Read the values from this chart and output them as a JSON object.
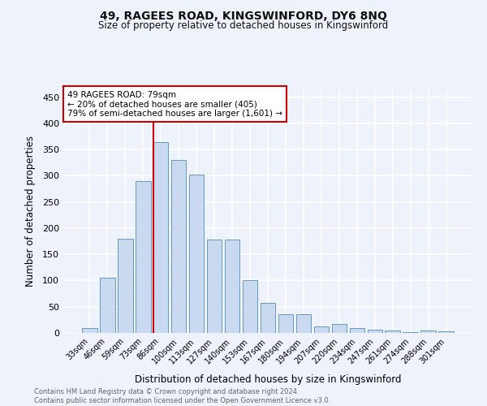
{
  "title1": "49, RAGEES ROAD, KINGSWINFORD, DY6 8NQ",
  "title2": "Size of property relative to detached houses in Kingswinford",
  "xlabel": "Distribution of detached houses by size in Kingswinford",
  "ylabel": "Number of detached properties",
  "categories": [
    "33sqm",
    "46sqm",
    "59sqm",
    "73sqm",
    "86sqm",
    "100sqm",
    "113sqm",
    "127sqm",
    "140sqm",
    "153sqm",
    "167sqm",
    "180sqm",
    "194sqm",
    "207sqm",
    "220sqm",
    "234sqm",
    "247sqm",
    "261sqm",
    "274sqm",
    "288sqm",
    "301sqm"
  ],
  "values": [
    10,
    105,
    180,
    290,
    365,
    330,
    302,
    178,
    178,
    100,
    57,
    35,
    35,
    12,
    17,
    10,
    6,
    5,
    1,
    4,
    3
  ],
  "bar_color": "#c9d9f0",
  "bar_edge_color": "#6699bb",
  "vline_color": "#cc0000",
  "annotation_text": "49 RAGEES ROAD: 79sqm\n← 20% of detached houses are smaller (405)\n79% of semi-detached houses are larger (1,601) →",
  "annotation_box_color": "#ffffff",
  "annotation_box_edge": "#cc0000",
  "ylim": [
    0,
    465
  ],
  "yticks": [
    0,
    50,
    100,
    150,
    200,
    250,
    300,
    350,
    400,
    450
  ],
  "footer": "Contains HM Land Registry data © Crown copyright and database right 2024.\nContains public sector information licensed under the Open Government Licence v3.0.",
  "bg_color": "#eef2fa",
  "grid_color": "#ffffff"
}
